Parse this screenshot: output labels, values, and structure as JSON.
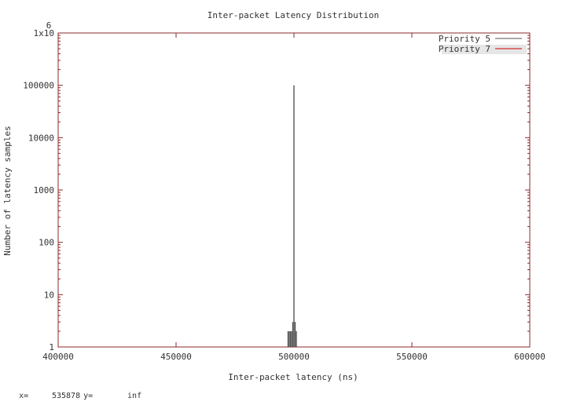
{
  "chart_data": {
    "type": "bar",
    "title": "Inter-packet Latency Distribution",
    "xlabel": "Inter-packet latency (ns)",
    "ylabel": "Number of latency samples",
    "xlim": [
      400000,
      600000
    ],
    "ylim": [
      1,
      1000000
    ],
    "yscale": "log",
    "x_ticks": [
      400000,
      450000,
      500000,
      550000,
      600000
    ],
    "x_tick_labels": [
      "400000",
      "450000",
      "500000",
      "550000",
      "600000"
    ],
    "y_ticks": [
      1,
      10,
      100,
      1000,
      10000,
      100000,
      1000000
    ],
    "y_tick_labels": [
      "1",
      "10",
      "100",
      "1000",
      "10000",
      "100000",
      "1x10"
    ],
    "y_top_exponent": "6",
    "grid": false,
    "legend_position": "top-right",
    "series": [
      {
        "name": "Priority 5",
        "color": "#555555",
        "points": [
          {
            "x": 497500,
            "y": 2
          },
          {
            "x": 498000,
            "y": 2
          },
          {
            "x": 498500,
            "y": 2
          },
          {
            "x": 499000,
            "y": 2
          },
          {
            "x": 499500,
            "y": 3
          },
          {
            "x": 500000,
            "y": 100000
          },
          {
            "x": 500500,
            "y": 3
          },
          {
            "x": 501000,
            "y": 2
          }
        ]
      },
      {
        "name": "Priority 7",
        "color": "#cc0000",
        "points": []
      }
    ]
  },
  "status_bar": {
    "x_label": "x=",
    "x_value": "535878",
    "y_label": "y=",
    "y_value": "inf"
  }
}
